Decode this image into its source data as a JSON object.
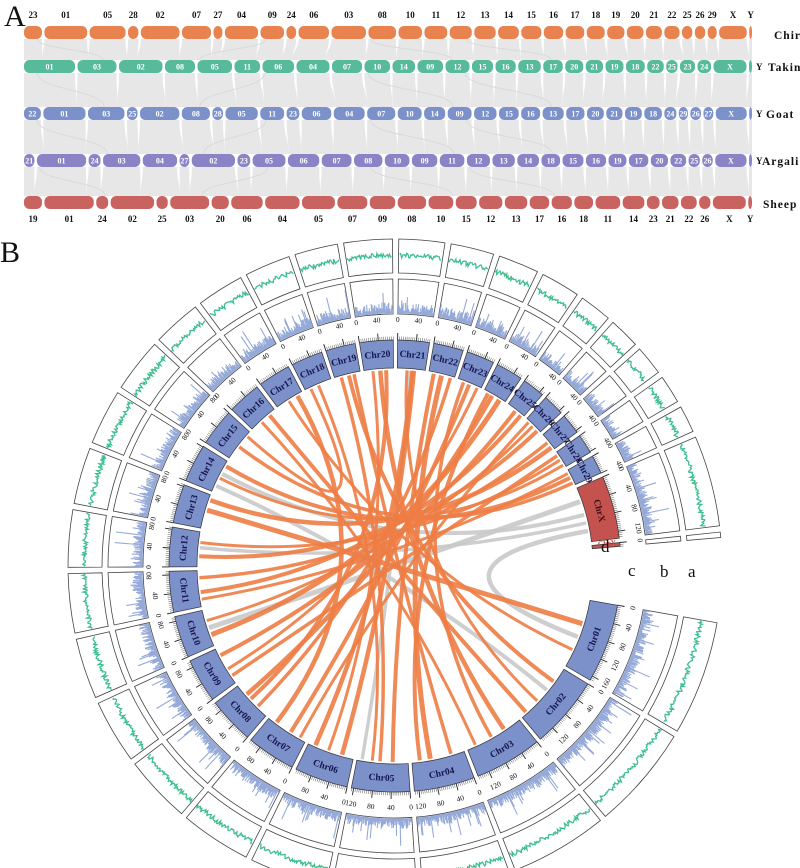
{
  "figure": {
    "panel_a_label": "A",
    "panel_b_label": "B"
  },
  "panel_a": {
    "ribbon_color": "#E6E6E6",
    "species": [
      {
        "name": "Chiru",
        "color": "#E8834F",
        "label_position": "above",
        "chromosomes": [
          {
            "label": "23",
            "size": 26
          },
          {
            "label": "01",
            "size": 62
          },
          {
            "label": "05",
            "size": 52
          },
          {
            "label": "28",
            "size": 15
          },
          {
            "label": "02",
            "size": 56
          },
          {
            "label": "07",
            "size": 42
          },
          {
            "label": "27",
            "size": 13
          },
          {
            "label": "04",
            "size": 48
          },
          {
            "label": "09",
            "size": 34
          },
          {
            "label": "24",
            "size": 14
          },
          {
            "label": "06",
            "size": 44
          },
          {
            "label": "03",
            "size": 50
          },
          {
            "label": "08",
            "size": 40
          },
          {
            "label": "10",
            "size": 34
          },
          {
            "label": "11",
            "size": 33
          },
          {
            "label": "12",
            "size": 32
          },
          {
            "label": "13",
            "size": 31
          },
          {
            "label": "14",
            "size": 30
          },
          {
            "label": "15",
            "size": 29
          },
          {
            "label": "16",
            "size": 28
          },
          {
            "label": "17",
            "size": 27
          },
          {
            "label": "18",
            "size": 26
          },
          {
            "label": "19",
            "size": 25
          },
          {
            "label": "20",
            "size": 24
          },
          {
            "label": "21",
            "size": 23
          },
          {
            "label": "22",
            "size": 22
          },
          {
            "label": "25",
            "size": 15
          },
          {
            "label": "26",
            "size": 15
          },
          {
            "label": "29",
            "size": 13
          },
          {
            "label": "X",
            "size": 40
          },
          {
            "label": "Y",
            "size": 4
          }
        ]
      },
      {
        "name": "Takin",
        "color": "#57BA9B",
        "label_position": "inside",
        "chromosomes": [
          {
            "label": "01",
            "size": 68
          },
          {
            "label": "03",
            "size": 52
          },
          {
            "label": "02",
            "size": 58
          },
          {
            "label": "08",
            "size": 40
          },
          {
            "label": "05",
            "size": 46
          },
          {
            "label": "11",
            "size": 34
          },
          {
            "label": "06",
            "size": 42
          },
          {
            "label": "04",
            "size": 44
          },
          {
            "label": "07",
            "size": 40
          },
          {
            "label": "10",
            "size": 34
          },
          {
            "label": "14",
            "size": 30
          },
          {
            "label": "09",
            "size": 34
          },
          {
            "label": "12",
            "size": 32
          },
          {
            "label": "15",
            "size": 28
          },
          {
            "label": "16",
            "size": 27
          },
          {
            "label": "13",
            "size": 30
          },
          {
            "label": "17",
            "size": 26
          },
          {
            "label": "20",
            "size": 24
          },
          {
            "label": "21",
            "size": 23
          },
          {
            "label": "19",
            "size": 24
          },
          {
            "label": "18",
            "size": 25
          },
          {
            "label": "22",
            "size": 22
          },
          {
            "label": "25",
            "size": 15
          },
          {
            "label": "23",
            "size": 20
          },
          {
            "label": "24",
            "size": 18
          },
          {
            "label": "X",
            "size": 44
          },
          {
            "label": "Y",
            "size": 4
          }
        ]
      },
      {
        "name": "Goat",
        "color": "#7C90C9",
        "label_position": "inside",
        "chromosomes": [
          {
            "label": "22",
            "size": 24
          },
          {
            "label": "01",
            "size": 60
          },
          {
            "label": "03",
            "size": 52
          },
          {
            "label": "25",
            "size": 15
          },
          {
            "label": "02",
            "size": 56
          },
          {
            "label": "08",
            "size": 40
          },
          {
            "label": "28",
            "size": 15
          },
          {
            "label": "05",
            "size": 46
          },
          {
            "label": "11",
            "size": 34
          },
          {
            "label": "23",
            "size": 18
          },
          {
            "label": "06",
            "size": 42
          },
          {
            "label": "04",
            "size": 44
          },
          {
            "label": "07",
            "size": 40
          },
          {
            "label": "10",
            "size": 34
          },
          {
            "label": "14",
            "size": 30
          },
          {
            "label": "09",
            "size": 34
          },
          {
            "label": "12",
            "size": 32
          },
          {
            "label": "15",
            "size": 28
          },
          {
            "label": "16",
            "size": 27
          },
          {
            "label": "13",
            "size": 30
          },
          {
            "label": "17",
            "size": 26
          },
          {
            "label": "20",
            "size": 24
          },
          {
            "label": "21",
            "size": 23
          },
          {
            "label": "19",
            "size": 24
          },
          {
            "label": "18",
            "size": 25
          },
          {
            "label": "24",
            "size": 17
          },
          {
            "label": "29",
            "size": 13
          },
          {
            "label": "26",
            "size": 15
          },
          {
            "label": "27",
            "size": 14
          },
          {
            "label": "X",
            "size": 44
          },
          {
            "label": "Y",
            "size": 4
          }
        ]
      },
      {
        "name": "Argali",
        "color": "#8A84C6",
        "label_position": "inside",
        "chromosomes": [
          {
            "label": "21",
            "size": 14
          },
          {
            "label": "01",
            "size": 66
          },
          {
            "label": "24",
            "size": 16
          },
          {
            "label": "03",
            "size": 50
          },
          {
            "label": "04",
            "size": 46
          },
          {
            "label": "27",
            "size": 13
          },
          {
            "label": "02",
            "size": 58
          },
          {
            "label": "23",
            "size": 17
          },
          {
            "label": "05",
            "size": 44
          },
          {
            "label": "06",
            "size": 42
          },
          {
            "label": "07",
            "size": 40
          },
          {
            "label": "08",
            "size": 38
          },
          {
            "label": "10",
            "size": 33
          },
          {
            "label": "09",
            "size": 34
          },
          {
            "label": "11",
            "size": 33
          },
          {
            "label": "12",
            "size": 31
          },
          {
            "label": "13",
            "size": 30
          },
          {
            "label": "14",
            "size": 29
          },
          {
            "label": "18",
            "size": 25
          },
          {
            "label": "15",
            "size": 28
          },
          {
            "label": "16",
            "size": 27
          },
          {
            "label": "19",
            "size": 24
          },
          {
            "label": "17",
            "size": 26
          },
          {
            "label": "20",
            "size": 23
          },
          {
            "label": "22",
            "size": 21
          },
          {
            "label": "25",
            "size": 15
          },
          {
            "label": "26",
            "size": 14
          },
          {
            "label": "X",
            "size": 42
          },
          {
            "label": "Y",
            "size": 4
          }
        ]
      },
      {
        "name": "Sheep",
        "color": "#C96360",
        "label_position": "below",
        "chromosomes": [
          {
            "label": "19",
            "size": 24
          },
          {
            "label": "01",
            "size": 66
          },
          {
            "label": "24",
            "size": 16
          },
          {
            "label": "02",
            "size": 58
          },
          {
            "label": "25",
            "size": 15
          },
          {
            "label": "03",
            "size": 52
          },
          {
            "label": "20",
            "size": 23
          },
          {
            "label": "06",
            "size": 42
          },
          {
            "label": "04",
            "size": 46
          },
          {
            "label": "05",
            "size": 44
          },
          {
            "label": "07",
            "size": 40
          },
          {
            "label": "09",
            "size": 34
          },
          {
            "label": "08",
            "size": 38
          },
          {
            "label": "10",
            "size": 33
          },
          {
            "label": "15",
            "size": 28
          },
          {
            "label": "12",
            "size": 31
          },
          {
            "label": "13",
            "size": 30
          },
          {
            "label": "17",
            "size": 26
          },
          {
            "label": "16",
            "size": 27
          },
          {
            "label": "18",
            "size": 25
          },
          {
            "label": "11",
            "size": 33
          },
          {
            "label": "14",
            "size": 29
          },
          {
            "label": "23",
            "size": 17
          },
          {
            "label": "21",
            "size": 22
          },
          {
            "label": "22",
            "size": 21
          },
          {
            "label": "26",
            "size": 15
          },
          {
            "label": "X",
            "size": 44
          },
          {
            "label": "Y",
            "size": 5
          }
        ]
      }
    ]
  },
  "panel_b": {
    "track_labels": [
      "a",
      "b",
      "c",
      "d"
    ],
    "ideogram_color": "#7C90C9",
    "sex_chrom_color": "#C4534F",
    "hist_color": "#96AAD9",
    "line_color": "#3FBF8F",
    "box_stroke": "#444444",
    "link_colors": {
      "orange": "#ED7D45",
      "gray": "#C9C9C9"
    },
    "tick_interval": 40,
    "chromosomes": [
      {
        "label": "Chr01",
        "size": 170,
        "color": "blue"
      },
      {
        "label": "Chr02",
        "size": 155,
        "color": "blue"
      },
      {
        "label": "Chr03",
        "size": 145,
        "color": "blue"
      },
      {
        "label": "Chr04",
        "size": 130,
        "color": "blue"
      },
      {
        "label": "Chr05",
        "size": 125,
        "color": "blue"
      },
      {
        "label": "Chr06",
        "size": 115,
        "color": "blue"
      },
      {
        "label": "Chr07",
        "size": 105,
        "color": "blue"
      },
      {
        "label": "Chr08",
        "size": 100,
        "color": "blue"
      },
      {
        "label": "Chr09",
        "size": 95,
        "color": "blue"
      },
      {
        "label": "Chr10",
        "size": 90,
        "color": "blue"
      },
      {
        "label": "Chr11",
        "size": 88,
        "color": "blue"
      },
      {
        "label": "Chr12",
        "size": 85,
        "color": "blue"
      },
      {
        "label": "Chr13",
        "size": 84,
        "color": "blue"
      },
      {
        "label": "Chr14",
        "size": 82,
        "color": "blue"
      },
      {
        "label": "Chr15",
        "size": 80,
        "color": "blue"
      },
      {
        "label": "Chr16",
        "size": 72,
        "color": "blue"
      },
      {
        "label": "Chr17",
        "size": 70,
        "color": "blue"
      },
      {
        "label": "Chr18",
        "size": 68,
        "color": "blue"
      },
      {
        "label": "Chr19",
        "size": 64,
        "color": "blue"
      },
      {
        "label": "Chr20",
        "size": 72,
        "color": "blue"
      },
      {
        "label": "Chr21",
        "size": 68,
        "color": "blue"
      },
      {
        "label": "Chr22",
        "size": 64,
        "color": "blue"
      },
      {
        "label": "Chr23",
        "size": 60,
        "color": "blue"
      },
      {
        "label": "Chr24",
        "size": 58,
        "color": "blue"
      },
      {
        "label": "Chr25",
        "size": 48,
        "color": "blue"
      },
      {
        "label": "Chr26",
        "size": 46,
        "color": "blue"
      },
      {
        "label": "Chr27",
        "size": 44,
        "color": "blue"
      },
      {
        "label": "Chr28",
        "size": 42,
        "color": "blue"
      },
      {
        "label": "Chr29",
        "size": 40,
        "color": "blue"
      },
      {
        "label": "ChrX",
        "size": 135,
        "color": "red"
      },
      {
        "label": "ChrY",
        "size": 8,
        "color": "red"
      }
    ],
    "links": {
      "orange": [
        [
          "Chr01",
          0.35,
          "Chr13",
          0.55,
          5
        ],
        [
          "Chr01",
          0.75,
          "Chr17",
          0.45,
          3
        ],
        [
          "Chr02",
          0.25,
          "Chr19",
          0.55,
          4
        ],
        [
          "Chr02",
          0.65,
          "Chr21",
          0.35,
          3
        ],
        [
          "Chr03",
          0.3,
          "Chr20",
          0.55,
          4.5
        ],
        [
          "Chr03",
          0.85,
          "Chr16",
          0.4,
          3
        ],
        [
          "Chr04",
          0.25,
          "Chr19",
          0.75,
          3.5
        ],
        [
          "Chr04",
          0.65,
          "Chr22",
          0.5,
          5
        ],
        [
          "Chr05",
          0.3,
          "Chr22",
          0.2,
          4
        ],
        [
          "Chr05",
          0.7,
          "Chr18",
          0.5,
          3
        ],
        [
          "Chr06",
          0.25,
          "Chr21",
          0.6,
          4.5
        ],
        [
          "Chr06",
          0.55,
          "Chr20",
          0.3,
          3
        ],
        [
          "Chr07",
          0.4,
          "Chr23",
          0.5,
          4
        ],
        [
          "Chr08",
          0.3,
          "Chr22",
          0.85,
          3.5
        ],
        [
          "Chr08",
          0.7,
          "Chr24",
          0.4,
          4.5
        ],
        [
          "Chr09",
          0.4,
          "Chr23",
          0.85,
          3
        ],
        [
          "Chr09",
          0.8,
          "Chr25",
          0.5,
          4
        ],
        [
          "Chr10",
          0.3,
          "Chr24",
          0.75,
          5
        ],
        [
          "Chr10",
          0.7,
          "Chr26",
          0.5,
          3
        ],
        [
          "Chr11",
          0.4,
          "Chr25",
          0.85,
          4
        ],
        [
          "Chr11",
          0.8,
          "Chr27",
          0.5,
          3.5
        ],
        [
          "Chr12",
          0.3,
          "Chr26",
          0.85,
          4
        ],
        [
          "Chr12",
          0.7,
          "Chr28",
          0.5,
          3
        ],
        [
          "Chr13",
          0.85,
          "Chr27",
          0.85,
          4.5
        ],
        [
          "Chr14",
          0.45,
          "Chr28",
          0.85,
          3
        ],
        [
          "Chr14",
          0.85,
          "Chr29",
          0.5,
          4
        ],
        [
          "Chr15",
          0.45,
          "Chr29",
          0.85,
          3.5
        ],
        [
          "Chr15",
          0.85,
          "Chr18",
          0.2,
          3
        ],
        [
          "Chr16",
          0.75,
          "Chr02",
          0.9,
          4
        ],
        [
          "Chr17",
          0.8,
          "Chr07",
          0.8,
          4.5
        ],
        [
          "Chr19",
          0.25,
          "Chr05",
          0.55,
          3.5
        ],
        [
          "Chr20",
          0.75,
          "Chr08",
          0.55,
          4
        ],
        [
          "Chr21",
          0.55,
          "Chr06",
          0.85,
          4.5
        ],
        [
          "Chr23",
          0.25,
          "Chr03",
          0.55,
          3.5
        ],
        [
          "Chr24",
          0.2,
          "Chr04",
          0.85,
          4
        ],
        [
          "Chr26",
          0.2,
          "Chr07",
          0.15,
          3
        ],
        [
          "Chr28",
          0.2,
          "Chr09",
          0.2,
          3.5
        ],
        [
          "Chr29",
          0.2,
          "Chr11",
          0.2,
          3
        ]
      ],
      "gray": [
        [
          "ChrX",
          0.25,
          "Chr10",
          0.5,
          5
        ],
        [
          "ChrX",
          0.5,
          "Chr14",
          0.6,
          4
        ],
        [
          "ChrX",
          0.8,
          "Chr01",
          0.55,
          4.5
        ],
        [
          "Chr21",
          0.47,
          "Chr05",
          0.9,
          3.5
        ],
        [
          "Chr14",
          0.2,
          "Chr02",
          0.42,
          4
        ],
        [
          "ChrX",
          0.65,
          "Chr12",
          0.55,
          3.5
        ]
      ]
    }
  }
}
